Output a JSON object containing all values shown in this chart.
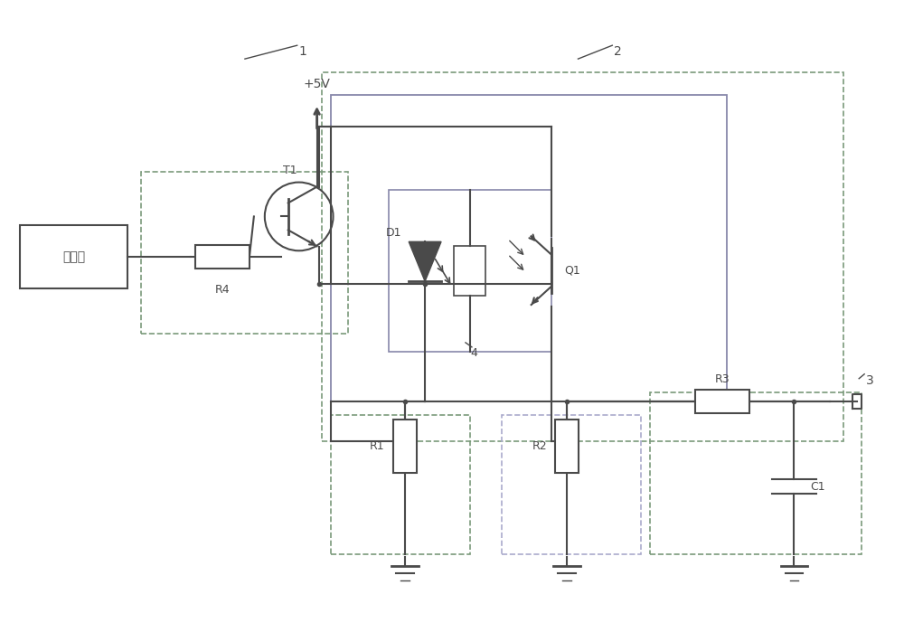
{
  "bg_color": "#ffffff",
  "line_color": "#4a4a4a",
  "dashed_color_outer": "#7a9a7a",
  "dashed_color_inner": "#8888aa",
  "box1_label": "控制器",
  "label1": "1",
  "label2": "2",
  "label3": "3",
  "label4": "4",
  "label_T1": "T1",
  "label_D1": "D1",
  "label_Q1": "Q1",
  "label_R1": "R1",
  "label_R2": "R2",
  "label_R3": "R3",
  "label_R4": "R4",
  "label_C1": "C1",
  "label_5V": "+5V"
}
